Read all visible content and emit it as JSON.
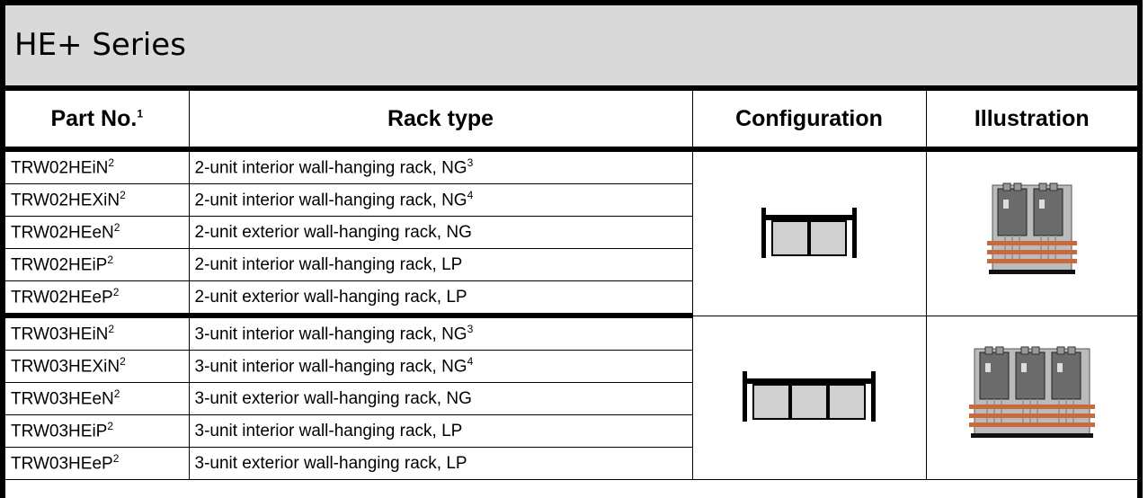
{
  "title": "HE+ Series",
  "header": {
    "part_no": {
      "text": "Part No.",
      "sup": "1"
    },
    "rack_type": "Rack type",
    "configuration": "Configuration",
    "illustration": "Illustration"
  },
  "groups": [
    {
      "rows": [
        {
          "part": {
            "text": "TRW02HEiN",
            "sup": "2"
          },
          "rack": {
            "text": "2-unit interior wall-hanging rack, NG",
            "sup": "3"
          }
        },
        {
          "part": {
            "text": "TRW02HEXiN",
            "sup": "2"
          },
          "rack": {
            "text": "2-unit interior wall-hanging rack, NG",
            "sup": "4"
          }
        },
        {
          "part": {
            "text": "TRW02HEeN",
            "sup": "2"
          },
          "rack": {
            "text": "2-unit exterior wall-hanging rack, NG"
          }
        },
        {
          "part": {
            "text": "TRW02HEiP",
            "sup": "2"
          },
          "rack": {
            "text": "2-unit interior wall-hanging rack, LP"
          }
        },
        {
          "part": {
            "text": "TRW02HEeP",
            "sup": "2"
          },
          "rack": {
            "text": "2-unit exterior wall-hanging rack, LP"
          }
        }
      ]
    },
    {
      "rows": [
        {
          "part": {
            "text": "TRW03HEiN",
            "sup": "2"
          },
          "rack": {
            "text": "3-unit interior wall-hanging rack, NG",
            "sup": "3"
          }
        },
        {
          "part": {
            "text": "TRW03HEXiN",
            "sup": "2"
          },
          "rack": {
            "text": "3-unit interior wall-hanging rack, NG",
            "sup": "4"
          }
        },
        {
          "part": {
            "text": "TRW03HEeN",
            "sup": "2"
          },
          "rack": {
            "text": "3-unit exterior wall-hanging rack, NG"
          }
        },
        {
          "part": {
            "text": "TRW03HEiP",
            "sup": "2"
          },
          "rack": {
            "text": "3-unit interior wall-hanging rack, LP"
          }
        },
        {
          "part": {
            "text": "TRW03HEeP",
            "sup": "2"
          },
          "rack": {
            "text": "3-unit exterior wall-hanging rack, LP"
          }
        }
      ]
    }
  ]
}
